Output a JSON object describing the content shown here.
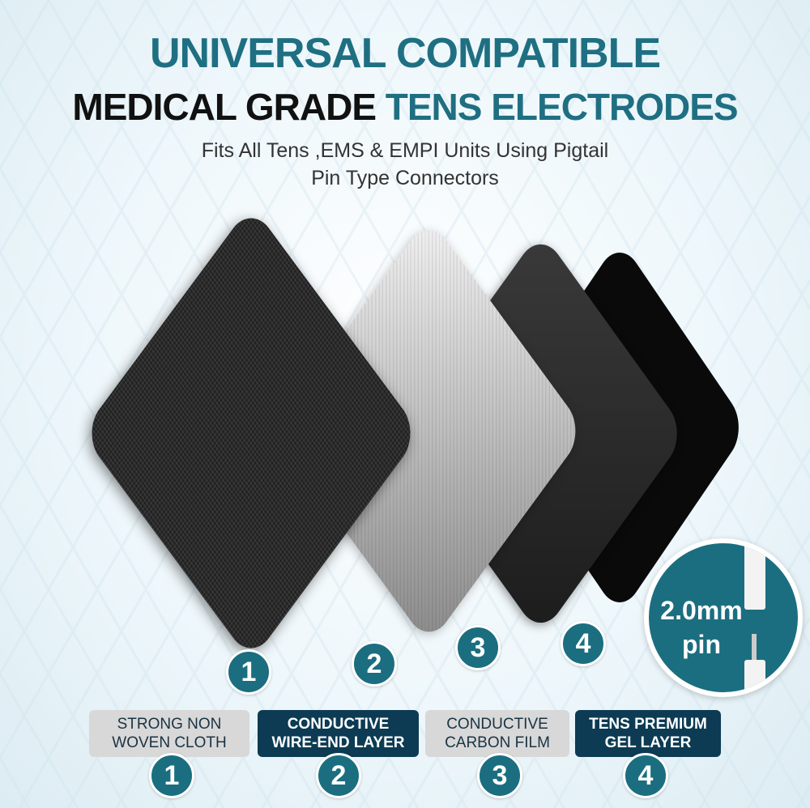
{
  "header": {
    "line1": "UNIVERSAL COMPATIBLE",
    "line2_dark": "MEDICAL GRADE",
    "line2_teal": "TENS ELECTRODES",
    "subtitle_line1": "Fits All Tens ,EMS & EMPI Units Using Pigtail",
    "subtitle_line2": "Pin Type Connectors"
  },
  "colors": {
    "teal": "#1b6e80",
    "navy": "#0c3b53",
    "gray_label": "#d8d8d8"
  },
  "layers": [
    {
      "number": "1",
      "label_line1": "STRONG NON",
      "label_line2": "WOVEN CLOTH"
    },
    {
      "number": "2",
      "label_line1": "CONDUCTIVE",
      "label_line2": "WIRE-END LAYER"
    },
    {
      "number": "3",
      "label_line1": "CONDUCTIVE",
      "label_line2": "CARBON FILM"
    },
    {
      "number": "4",
      "label_line1": "TENS PREMIUM",
      "label_line2": "GEL LAYER"
    }
  ],
  "pin_badge": {
    "size": "2.0mm",
    "word": "pin"
  }
}
